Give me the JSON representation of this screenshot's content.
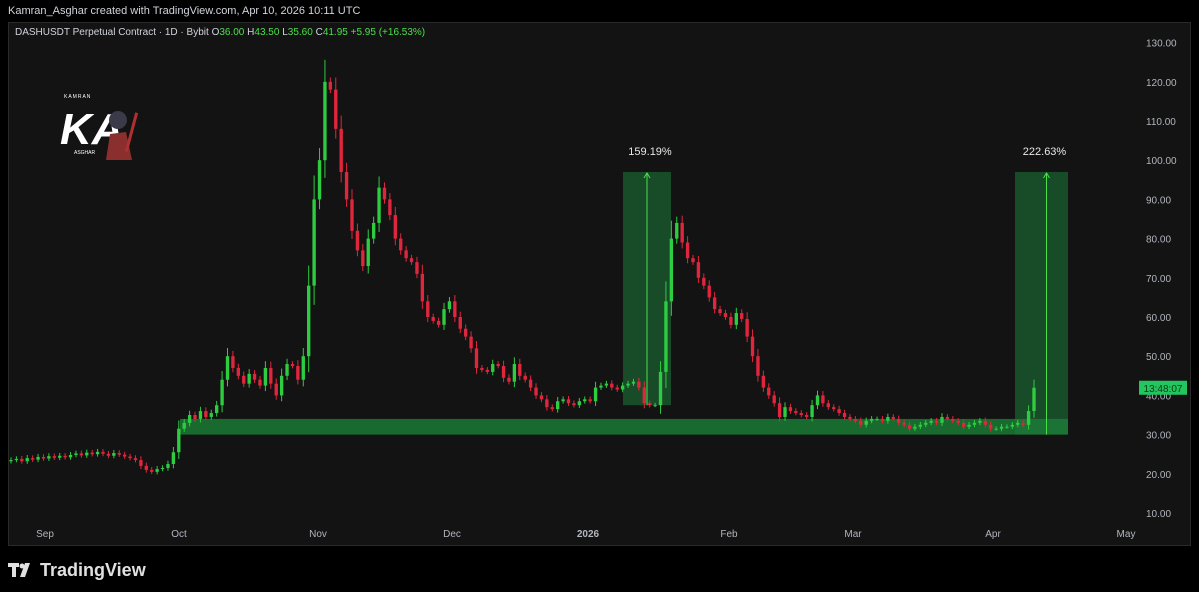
{
  "header": {
    "attribution": "Kamran_Asghar created with TradingView.com, Apr 10, 2026 10:11 UTC"
  },
  "legend": {
    "symbol": "DASHUSDT Perpetual Contract · 1D · Bybit",
    "o_label": "O",
    "o_value": "36.00",
    "h_label": "H",
    "h_value": "43.50",
    "l_label": "L",
    "l_value": "35.60",
    "c_label": "C",
    "c_value": "41.95",
    "change": "+5.95 (+16.53%)"
  },
  "footer": {
    "brand": "TradingView"
  },
  "watermark": {
    "text": "KA",
    "small_text": "KAMRAN",
    "bottom_text": "ASGHAR"
  },
  "colors": {
    "up": "#2ecc40",
    "down": "#e0263d",
    "zone": "#1f7a36",
    "bg": "#131313",
    "price_tag": "#22c55e"
  },
  "chart_data": {
    "type": "candlestick",
    "ylim": [
      10,
      132
    ],
    "yticks": [
      "130.00",
      "120.00",
      "110.00",
      "100.00",
      "90.00",
      "80.00",
      "70.00",
      "60.00",
      "50.00",
      "40.00",
      "30.00",
      "20.00",
      "10.00"
    ],
    "xticks": [
      "Sep",
      "Oct",
      "Nov",
      "Dec",
      "2026",
      "Feb",
      "Mar",
      "Apr",
      "May"
    ],
    "current_price_tag": "13:48:07",
    "current_price": 41.95,
    "support_zone": [
      30,
      34
    ],
    "annotations": [
      {
        "label": "159.19%",
        "from": 37.5,
        "to": 97
      },
      {
        "label": "222.63%",
        "from": 30,
        "to": 97
      }
    ],
    "closes": [
      23.5,
      23.8,
      23.2,
      24.0,
      23.6,
      24.3,
      23.9,
      24.5,
      24.1,
      24.6,
      24.2,
      24.8,
      25.2,
      24.7,
      25.4,
      25.0,
      25.6,
      25.1,
      24.6,
      25.3,
      24.9,
      24.4,
      24.0,
      23.5,
      22.0,
      21.0,
      20.5,
      21.2,
      21.5,
      22.5,
      25.5,
      31.5,
      33.0,
      35.0,
      34.0,
      36.0,
      34.5,
      35.5,
      37.5,
      44.0,
      50.0,
      47.0,
      45.0,
      43.0,
      45.5,
      44.0,
      42.5,
      47.0,
      43.0,
      40.0,
      45.0,
      48.0,
      47.5,
      44.0,
      50.0,
      68.0,
      90.0,
      100.0,
      120.0,
      118.0,
      108.0,
      97.0,
      90.0,
      82.0,
      77.0,
      73.0,
      80.0,
      84.0,
      93.0,
      90.0,
      86.0,
      80.0,
      77.0,
      75.0,
      74.0,
      71.0,
      64.0,
      60.0,
      59.0,
      58.0,
      62.0,
      64.0,
      60.0,
      57.0,
      55.0,
      52.0,
      47.0,
      46.5,
      46.0,
      48.0,
      47.5,
      44.5,
      43.5,
      48.0,
      45.0,
      44.0,
      42.0,
      40.0,
      39.0,
      37.0,
      36.5,
      38.5,
      39.0,
      38.0,
      37.5,
      38.5,
      39.0,
      38.5,
      42.0,
      42.5,
      43.0,
      42.0,
      41.5,
      42.5,
      43.0,
      43.5,
      42.0,
      38.0,
      37.5,
      37.5,
      46.0,
      64.0,
      80.0,
      84.0,
      79.0,
      75.0,
      74.0,
      70.0,
      68.0,
      65.0,
      62.0,
      61.0,
      60.0,
      58.0,
      61.0,
      59.5,
      55.0,
      50.0,
      45.0,
      42.0,
      40.0,
      38.0,
      34.5,
      37.0,
      36.0,
      35.5,
      35.0,
      34.5,
      37.5,
      40.0,
      38.0,
      37.0,
      36.5,
      35.5,
      34.5,
      34.0,
      33.5,
      32.5,
      33.5,
      34.0,
      34.0,
      33.5,
      34.5,
      34.0,
      33.0,
      32.5,
      31.5,
      32.0,
      32.5,
      33.0,
      33.5,
      33.0,
      34.5,
      34.0,
      33.5,
      33.0,
      32.0,
      32.5,
      33.0,
      33.5,
      32.5,
      31.5,
      31.5,
      32.0,
      32.0,
      32.5,
      33.0,
      32.5,
      36.0,
      41.95
    ]
  }
}
